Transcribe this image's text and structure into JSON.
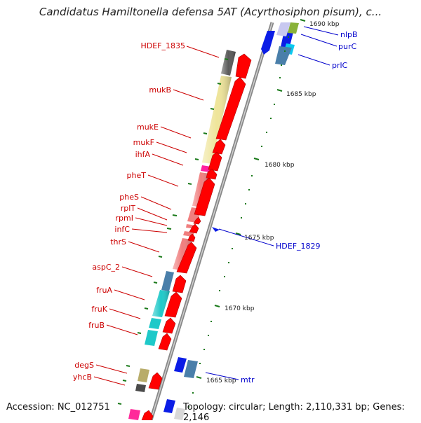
{
  "title": "Candidatus Hamiltonella defensa 5AT (Acyrthosiphon pisum), c...",
  "footer": {
    "accession": "Accession: NC_012751",
    "info": "Topology: circular; Length: 2,110,331 bp; Genes: 2,146"
  },
  "ticks": [
    "1690 kbp",
    "1685 kbp",
    "1680 kbp",
    "1675 kbp",
    "1670 kbp",
    "1665 kbp"
  ],
  "left_genes": [
    "HDEF_1835",
    "mukB",
    "mukE",
    "mukF",
    "ihfA",
    "pheT",
    "pheS",
    "rplT",
    "rpmI",
    "infC",
    "thrS",
    "aspC_2",
    "fruA",
    "fruK",
    "fruB",
    "degS",
    "yhcB"
  ],
  "right_genes": [
    "nlpB",
    "purC",
    "prlC",
    "HDEF_1829",
    "mtr"
  ],
  "colors": {
    "label_red": "#cc0000",
    "label_blue": "#0000cc",
    "tick_green": "#1a7a1a",
    "backbone": "#8a8a8a"
  }
}
